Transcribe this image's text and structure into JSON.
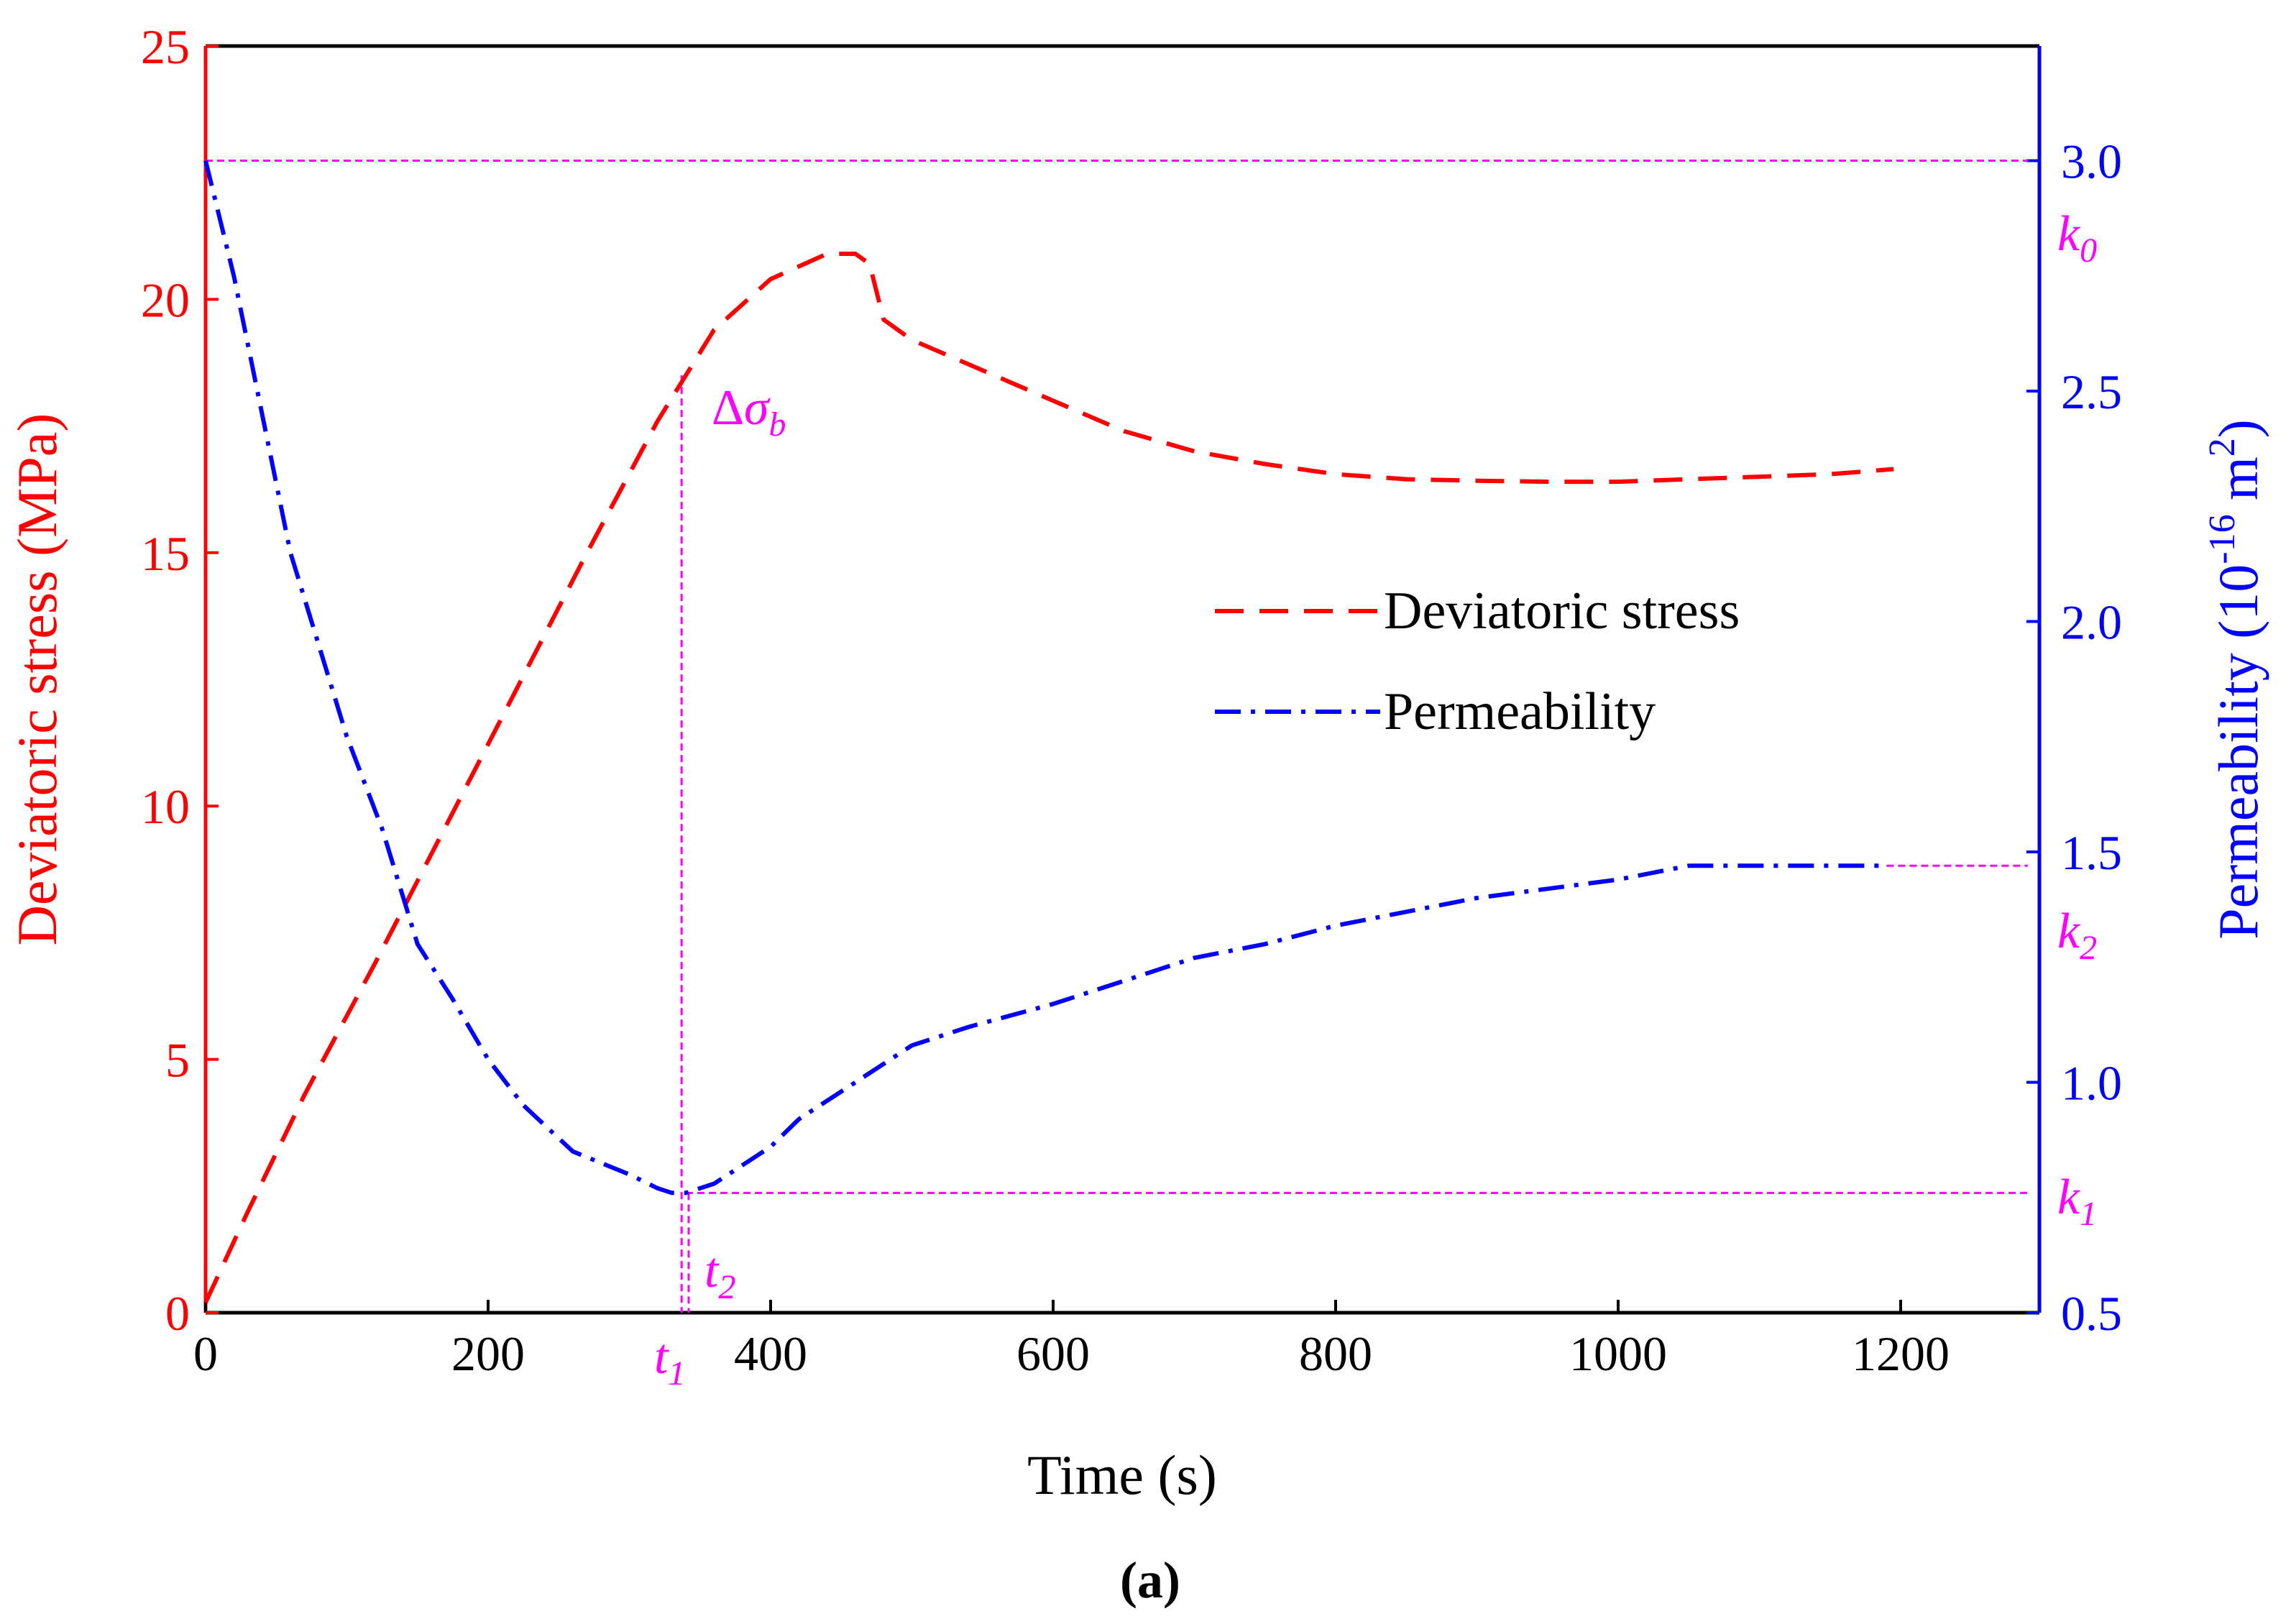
{
  "chart_data": {
    "type": "line",
    "caption": "(a)",
    "xlabel": "Time (s)",
    "ylabel_left": "Deviatoric stress (MPa)",
    "ylabel_right": {
      "prefix": "Permeability (10",
      "exponent": "-16",
      "unit": " m",
      "unit_exponent": "2",
      "suffix": ")"
    },
    "xlim": [
      0,
      1300
    ],
    "ylim_left": [
      0,
      25
    ],
    "ylim_right": [
      0.5,
      3.3
    ],
    "x_ticks": [
      {
        "value": 0,
        "label": "0"
      },
      {
        "value": 200,
        "label": "200"
      },
      {
        "value": 400,
        "label": "400"
      },
      {
        "value": 600,
        "label": "600"
      },
      {
        "value": 800,
        "label": "800"
      },
      {
        "value": 1000,
        "label": "1000"
      },
      {
        "value": 1200,
        "label": "1200"
      }
    ],
    "y_left_ticks": [
      {
        "value": 0,
        "label": "0"
      },
      {
        "value": 5,
        "label": "5"
      },
      {
        "value": 10,
        "label": "10"
      },
      {
        "value": 15,
        "label": "15"
      },
      {
        "value": 20,
        "label": "20"
      },
      {
        "value": 25,
        "label": "25"
      }
    ],
    "y_right_ticks": [
      {
        "value": 0.5,
        "label": "0.5"
      },
      {
        "value": 1.0,
        "label": "1.0"
      },
      {
        "value": 1.5,
        "label": "1.5"
      },
      {
        "value": 2.0,
        "label": "2.0"
      },
      {
        "value": 2.5,
        "label": "2.5"
      },
      {
        "value": 3.0,
        "label": "3.0"
      }
    ],
    "colors": {
      "stress": "#ff0000",
      "permeability": "#0000ff",
      "annotation": "#ff00ff",
      "frame": "#000000"
    },
    "legend_position": "center-right",
    "series": [
      {
        "name": "Deviatoric stress",
        "axis": "left",
        "style": "dashed",
        "x": [
          0,
          30,
          70,
          120,
          170,
          220,
          270,
          320,
          340,
          360,
          400,
          440,
          460,
          470,
          480,
          500,
          550,
          600,
          650,
          700,
          750,
          800,
          850,
          900,
          950,
          1000,
          1050,
          1100,
          1150,
          1195
        ],
        "y": [
          0.2,
          2.0,
          4.3,
          6.9,
          9.6,
          12.3,
          15.0,
          17.6,
          18.5,
          19.4,
          20.4,
          20.9,
          20.9,
          20.7,
          19.6,
          19.2,
          18.6,
          18.0,
          17.4,
          17.0,
          16.75,
          16.55,
          16.45,
          16.42,
          16.4,
          16.4,
          16.45,
          16.5,
          16.55,
          16.65
        ]
      },
      {
        "name": "Permeability",
        "axis": "right",
        "style": "dashdot",
        "x": [
          0,
          20,
          40,
          60,
          80,
          100,
          125,
          150,
          175,
          200,
          225,
          260,
          300,
          320,
          330,
          340,
          360,
          380,
          400,
          420,
          450,
          480,
          500,
          540,
          600,
          650,
          700,
          750,
          800,
          850,
          900,
          950,
          1000,
          1050,
          1100,
          1150,
          1190
        ],
        "y": [
          3.0,
          2.75,
          2.45,
          2.15,
          1.95,
          1.75,
          1.55,
          1.3,
          1.18,
          1.05,
          0.95,
          0.85,
          0.8,
          0.77,
          0.76,
          0.76,
          0.78,
          0.82,
          0.86,
          0.92,
          0.98,
          1.04,
          1.08,
          1.12,
          1.17,
          1.22,
          1.27,
          1.3,
          1.34,
          1.37,
          1.4,
          1.42,
          1.44,
          1.47,
          1.47,
          1.47,
          1.47
        ]
      }
    ],
    "reference_lines": {
      "k0": {
        "axis": "right",
        "value": 3.0,
        "x_start": 0,
        "x_end": 1290
      },
      "k2": {
        "axis": "right",
        "value": 1.47,
        "x_start": 1190,
        "x_end": 1290
      },
      "k1": {
        "axis": "right",
        "value": 0.76,
        "x_start": 340,
        "x_end": 1290
      },
      "t1": {
        "x": 337,
        "y_left_top": 18.5
      },
      "t2": {
        "x": 342,
        "y_right_top": 0.76
      }
    },
    "annotations": {
      "k0": {
        "base": "k",
        "sub": "0"
      },
      "k1": {
        "base": "k",
        "sub": "1"
      },
      "k2": {
        "base": "k",
        "sub": "2"
      },
      "t1": {
        "base": "t",
        "sub": "1"
      },
      "t2": {
        "base": "t",
        "sub": "2"
      },
      "peak": {
        "delta": "Δ",
        "base": "σ",
        "sub": "b"
      }
    }
  }
}
